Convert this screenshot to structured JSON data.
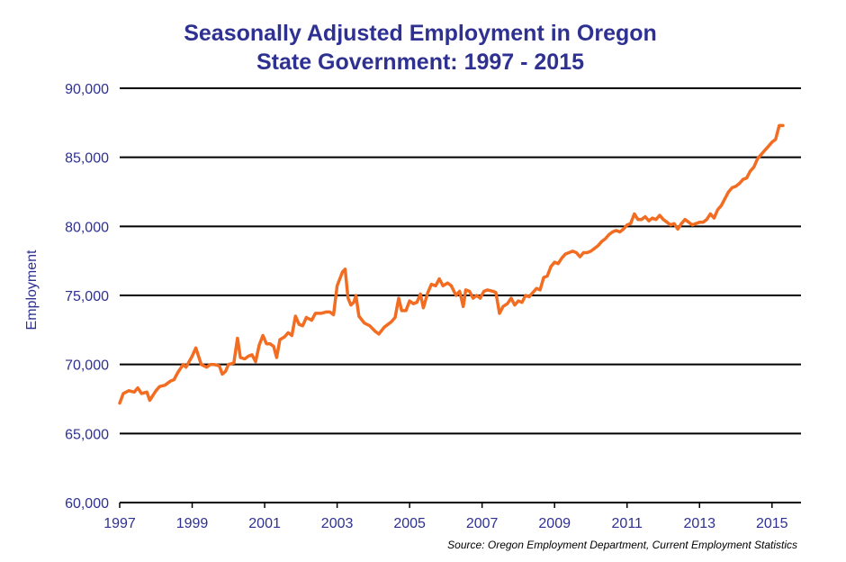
{
  "chart_data": {
    "type": "line",
    "title": "Seasonally Adjusted Employment in Oregon",
    "subtitle": "State Government:  1997 - 2015",
    "xlabel": "",
    "ylabel": "Employment",
    "source": "Source: Oregon Employment Department, Current Employment Statistics",
    "xlim": [
      1997,
      2015.8
    ],
    "ylim": [
      60000,
      90000
    ],
    "x_ticks": [
      "1997",
      "1999",
      "2001",
      "2003",
      "2005",
      "2007",
      "2009",
      "2011",
      "2013",
      "2015"
    ],
    "y_ticks": [
      "60,000",
      "65,000",
      "70,000",
      "75,000",
      "80,000",
      "85,000",
      "90,000"
    ],
    "grid": "horizontal",
    "legend": "none",
    "series": [
      {
        "color": "#f26d21",
        "points": [
          [
            1997.0,
            67200
          ],
          [
            1997.1,
            67900
          ],
          [
            1997.25,
            68100
          ],
          [
            1997.4,
            68000
          ],
          [
            1997.5,
            68300
          ],
          [
            1997.6,
            67900
          ],
          [
            1997.75,
            68000
          ],
          [
            1997.83,
            67400
          ],
          [
            1998.0,
            68100
          ],
          [
            1998.1,
            68400
          ],
          [
            1998.25,
            68500
          ],
          [
            1998.4,
            68800
          ],
          [
            1998.5,
            68900
          ],
          [
            1998.6,
            69400
          ],
          [
            1998.75,
            70000
          ],
          [
            1998.83,
            69800
          ],
          [
            1999.0,
            70600
          ],
          [
            1999.1,
            71200
          ],
          [
            1999.25,
            70000
          ],
          [
            1999.4,
            69800
          ],
          [
            1999.5,
            70000
          ],
          [
            1999.6,
            70000
          ],
          [
            1999.75,
            69900
          ],
          [
            1999.83,
            69300
          ],
          [
            1999.92,
            69500
          ],
          [
            2000.0,
            70000
          ],
          [
            2000.15,
            70100
          ],
          [
            2000.25,
            71900
          ],
          [
            2000.33,
            70500
          ],
          [
            2000.45,
            70400
          ],
          [
            2000.55,
            70600
          ],
          [
            2000.65,
            70700
          ],
          [
            2000.75,
            70200
          ],
          [
            2000.85,
            71400
          ],
          [
            2000.95,
            72100
          ],
          [
            2001.05,
            71500
          ],
          [
            2001.15,
            71500
          ],
          [
            2001.25,
            71300
          ],
          [
            2001.33,
            70500
          ],
          [
            2001.42,
            71800
          ],
          [
            2001.55,
            72000
          ],
          [
            2001.65,
            72300
          ],
          [
            2001.75,
            72100
          ],
          [
            2001.85,
            73500
          ],
          [
            2001.95,
            72900
          ],
          [
            2002.05,
            72800
          ],
          [
            2002.15,
            73400
          ],
          [
            2002.3,
            73200
          ],
          [
            2002.4,
            73700
          ],
          [
            2002.55,
            73700
          ],
          [
            2002.7,
            73800
          ],
          [
            2002.8,
            73800
          ],
          [
            2002.9,
            73600
          ],
          [
            2003.0,
            75700
          ],
          [
            2003.15,
            76700
          ],
          [
            2003.22,
            76900
          ],
          [
            2003.3,
            74800
          ],
          [
            2003.38,
            74300
          ],
          [
            2003.46,
            74500
          ],
          [
            2003.52,
            75000
          ],
          [
            2003.6,
            73500
          ],
          [
            2003.75,
            73000
          ],
          [
            2003.9,
            72800
          ],
          [
            2004.05,
            72400
          ],
          [
            2004.15,
            72200
          ],
          [
            2004.3,
            72700
          ],
          [
            2004.45,
            73000
          ],
          [
            2004.5,
            73100
          ],
          [
            2004.6,
            73400
          ],
          [
            2004.7,
            74800
          ],
          [
            2004.78,
            73900
          ],
          [
            2004.9,
            73900
          ],
          [
            2005.0,
            74600
          ],
          [
            2005.1,
            74400
          ],
          [
            2005.2,
            74500
          ],
          [
            2005.3,
            75100
          ],
          [
            2005.38,
            74100
          ],
          [
            2005.5,
            75200
          ],
          [
            2005.6,
            75800
          ],
          [
            2005.72,
            75700
          ],
          [
            2005.82,
            76200
          ],
          [
            2005.92,
            75700
          ],
          [
            2006.05,
            75900
          ],
          [
            2006.15,
            75700
          ],
          [
            2006.28,
            75000
          ],
          [
            2006.38,
            75300
          ],
          [
            2006.48,
            74200
          ],
          [
            2006.55,
            75400
          ],
          [
            2006.65,
            75300
          ],
          [
            2006.75,
            74800
          ],
          [
            2006.85,
            75000
          ],
          [
            2006.95,
            74800
          ],
          [
            2007.05,
            75300
          ],
          [
            2007.15,
            75400
          ],
          [
            2007.3,
            75300
          ],
          [
            2007.38,
            75200
          ],
          [
            2007.48,
            73700
          ],
          [
            2007.58,
            74200
          ],
          [
            2007.7,
            74400
          ],
          [
            2007.8,
            74800
          ],
          [
            2007.9,
            74300
          ],
          [
            2008.0,
            74600
          ],
          [
            2008.1,
            74500
          ],
          [
            2008.2,
            75000
          ],
          [
            2008.3,
            74900
          ],
          [
            2008.4,
            75200
          ],
          [
            2008.5,
            75500
          ],
          [
            2008.6,
            75400
          ],
          [
            2008.7,
            76300
          ],
          [
            2008.8,
            76400
          ],
          [
            2008.9,
            77100
          ],
          [
            2009.0,
            77400
          ],
          [
            2009.1,
            77300
          ],
          [
            2009.2,
            77700
          ],
          [
            2009.3,
            78000
          ],
          [
            2009.4,
            78100
          ],
          [
            2009.5,
            78200
          ],
          [
            2009.6,
            78100
          ],
          [
            2009.7,
            77800
          ],
          [
            2009.8,
            78100
          ],
          [
            2009.9,
            78100
          ],
          [
            2010.0,
            78200
          ],
          [
            2010.1,
            78400
          ],
          [
            2010.2,
            78600
          ],
          [
            2010.3,
            78900
          ],
          [
            2010.4,
            79100
          ],
          [
            2010.5,
            79400
          ],
          [
            2010.6,
            79600
          ],
          [
            2010.7,
            79700
          ],
          [
            2010.8,
            79600
          ],
          [
            2010.9,
            79800
          ],
          [
            2011.0,
            80100
          ],
          [
            2011.1,
            80200
          ],
          [
            2011.2,
            80900
          ],
          [
            2011.3,
            80500
          ],
          [
            2011.4,
            80500
          ],
          [
            2011.5,
            80700
          ],
          [
            2011.6,
            80400
          ],
          [
            2011.7,
            80600
          ],
          [
            2011.8,
            80500
          ],
          [
            2011.9,
            80800
          ],
          [
            2012.0,
            80500
          ],
          [
            2012.1,
            80300
          ],
          [
            2012.2,
            80100
          ],
          [
            2012.3,
            80200
          ],
          [
            2012.4,
            79800
          ],
          [
            2012.5,
            80200
          ],
          [
            2012.6,
            80500
          ],
          [
            2012.7,
            80300
          ],
          [
            2012.8,
            80100
          ],
          [
            2012.9,
            80200
          ],
          [
            2013.0,
            80300
          ],
          [
            2013.1,
            80300
          ],
          [
            2013.2,
            80500
          ],
          [
            2013.3,
            80900
          ],
          [
            2013.4,
            80600
          ],
          [
            2013.5,
            81200
          ],
          [
            2013.6,
            81500
          ],
          [
            2013.7,
            82000
          ],
          [
            2013.8,
            82500
          ],
          [
            2013.9,
            82800
          ],
          [
            2014.0,
            82900
          ],
          [
            2014.1,
            83100
          ],
          [
            2014.2,
            83400
          ],
          [
            2014.3,
            83500
          ],
          [
            2014.4,
            84000
          ],
          [
            2014.5,
            84300
          ],
          [
            2014.6,
            84900
          ],
          [
            2014.7,
            85200
          ],
          [
            2014.8,
            85500
          ],
          [
            2014.9,
            85800
          ],
          [
            2015.0,
            86100
          ],
          [
            2015.1,
            86300
          ],
          [
            2015.2,
            87300
          ],
          [
            2015.3,
            87300
          ]
        ]
      }
    ]
  }
}
